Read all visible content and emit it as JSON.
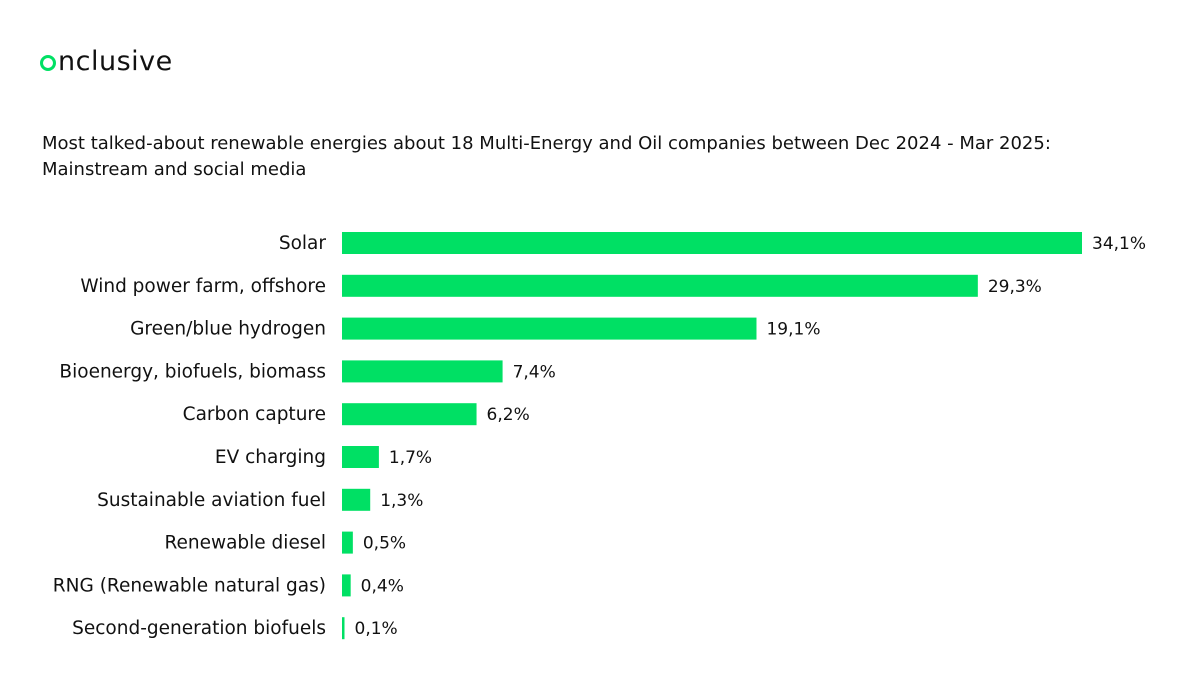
{
  "brand": {
    "logo_rest": "nclusive",
    "accent_color": "#00e064"
  },
  "chart_data": {
    "type": "bar",
    "orientation": "horizontal",
    "title_lines": [
      "Most talked-about renewable energies about 18 Multi-Energy and Oil companies between Dec 2024 - Mar 2025:",
      "Mainstream and social media"
    ],
    "categories": [
      "Solar",
      "Wind power farm, offshore",
      "Green/blue hydrogen",
      "Bioenergy, biofuels, biomass",
      "Carbon capture",
      "EV charging",
      "Sustainable aviation fuel",
      "Renewable diesel",
      "RNG (Renewable natural gas)",
      "Second-generation biofuels"
    ],
    "values": [
      34.1,
      29.3,
      19.1,
      7.4,
      6.2,
      1.7,
      1.3,
      0.5,
      0.4,
      0.1
    ],
    "value_labels": [
      "34,1%",
      "29,3%",
      "19,1%",
      "7,4%",
      "6,2%",
      "1,7%",
      "1,3%",
      "0,5%",
      "0,4%",
      "0,1%"
    ],
    "xlim": [
      0,
      34.1
    ],
    "bar_color": "#00e064",
    "grid": false,
    "legend": "none"
  }
}
